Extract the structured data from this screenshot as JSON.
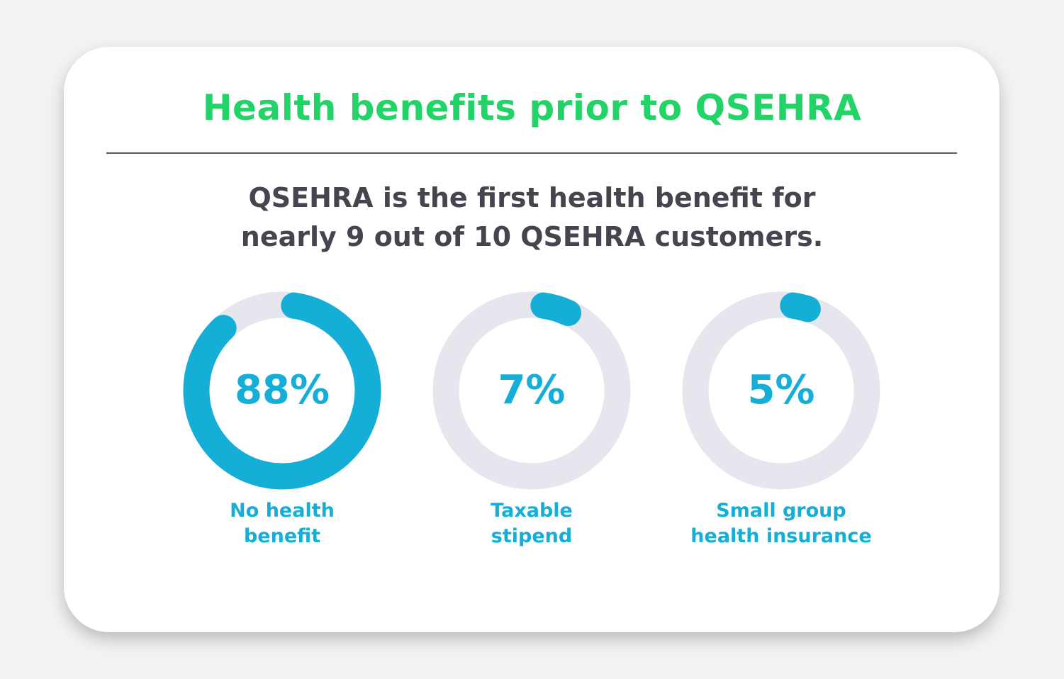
{
  "title": "Health benefits prior to QSEHRA",
  "subtitle_lines": [
    "QSEHRA is the first health benefit for",
    "nearly 9 out of 10 QSEHRA customers."
  ],
  "colors": {
    "title": "#22d467",
    "subtitle": "#45454f",
    "accent": "#15aed6",
    "track": "#e6e6ee",
    "background": "#f1f2f4",
    "card": "#ffffff"
  },
  "chart_data": [
    {
      "type": "pie",
      "style": "donut",
      "value": 88,
      "value_label": "88%",
      "label_lines": [
        "No health",
        "benefit"
      ]
    },
    {
      "type": "pie",
      "style": "donut",
      "value": 7,
      "value_label": "7%",
      "label_lines": [
        "Taxable",
        "stipend"
      ]
    },
    {
      "type": "pie",
      "style": "donut",
      "value": 5,
      "value_label": "5%",
      "label_lines": [
        "Small group",
        "health insurance"
      ]
    }
  ]
}
